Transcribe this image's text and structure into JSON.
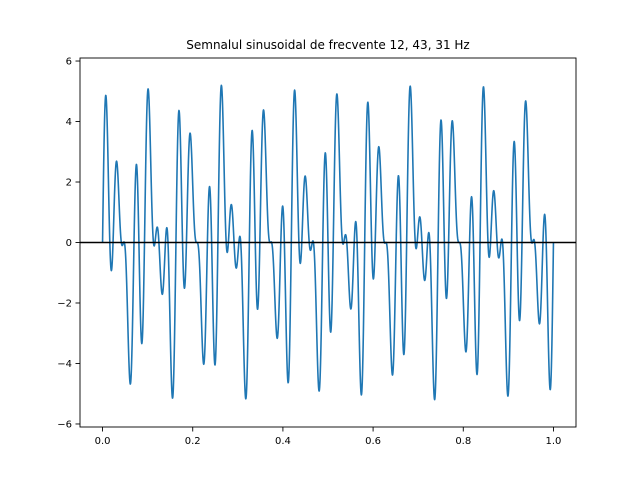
{
  "chart_data": {
    "type": "line",
    "title": "Semnalul sinusoidal de frecvente 12, 43, 31 Hz",
    "xlabel": "",
    "ylabel": "",
    "xlim": [
      -0.05,
      1.05
    ],
    "ylim": [
      -6.1,
      6.1
    ],
    "xticks": [
      0.0,
      0.2,
      0.4,
      0.6,
      0.8,
      1.0
    ],
    "xtick_labels": [
      "0.0",
      "0.2",
      "0.4",
      "0.6",
      "0.8",
      "1.0"
    ],
    "yticks": [
      -6,
      -4,
      -2,
      0,
      2,
      4,
      6
    ],
    "ytick_labels": [
      "−6",
      "−4",
      "−2",
      "0",
      "2",
      "4",
      "6"
    ],
    "grid": false,
    "legend": "none",
    "series": [
      {
        "frequencies_hz": [
          12,
          43,
          31
        ],
        "amplitudes": [
          2,
          2,
          2
        ],
        "x_range": [
          0,
          1
        ],
        "color": "#1f77b4"
      }
    ],
    "reference_line": {
      "y": 0,
      "color": "#000000"
    }
  }
}
